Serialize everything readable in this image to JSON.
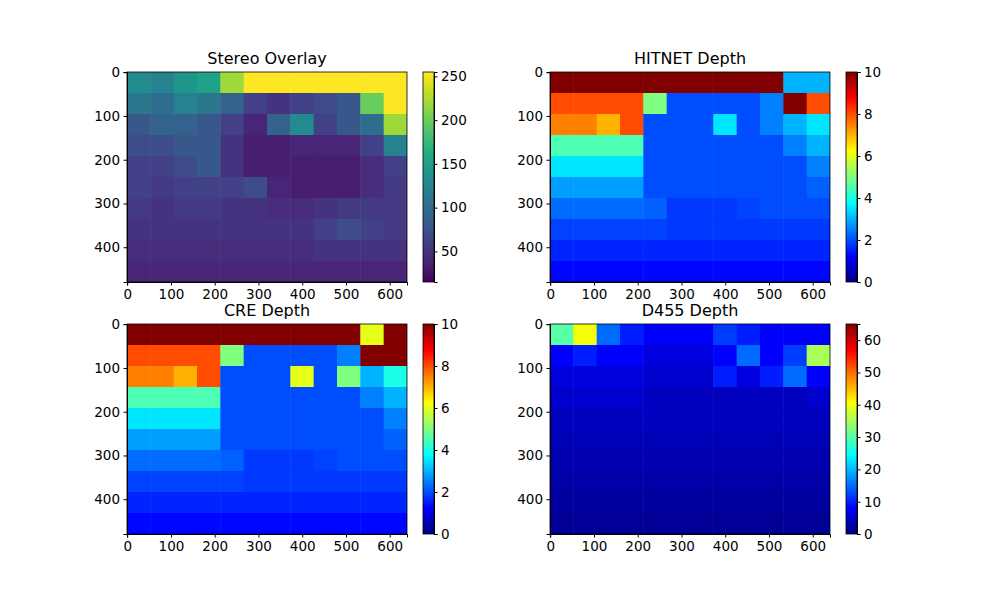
{
  "chart_data": [
    {
      "type": "heatmap",
      "title": "Stereo Overlay",
      "color": "viridis",
      "xlim": [
        -0.5,
        639.5
      ],
      "ylim": [
        479.5,
        -0.5
      ],
      "xticks": [
        0,
        100,
        200,
        300,
        400,
        500,
        600
      ],
      "yticks": [
        0,
        100,
        200,
        300,
        400
      ],
      "clim": [
        15,
        255
      ],
      "cticks": [
        50,
        100,
        150,
        200,
        250
      ],
      "values": [
        [
          130,
          120,
          140,
          150,
          220,
          255,
          255,
          255,
          255,
          255,
          255,
          255
        ],
        [
          110,
          100,
          120,
          110,
          90,
          60,
          50,
          60,
          70,
          80,
          200,
          255
        ],
        [
          80,
          90,
          90,
          80,
          60,
          40,
          90,
          130,
          60,
          80,
          100,
          220
        ],
        [
          70,
          70,
          80,
          80,
          50,
          35,
          35,
          40,
          40,
          40,
          60,
          120
        ],
        [
          60,
          60,
          70,
          80,
          50,
          35,
          35,
          35,
          35,
          35,
          45,
          60
        ],
        [
          60,
          55,
          60,
          60,
          60,
          70,
          40,
          35,
          35,
          35,
          45,
          55
        ],
        [
          55,
          50,
          55,
          55,
          50,
          50,
          45,
          45,
          50,
          55,
          55,
          55
        ],
        [
          50,
          50,
          50,
          50,
          50,
          50,
          50,
          50,
          60,
          70,
          60,
          55
        ],
        [
          45,
          45,
          45,
          45,
          45,
          45,
          45,
          45,
          50,
          50,
          50,
          50
        ],
        [
          40,
          40,
          40,
          40,
          40,
          40,
          40,
          40,
          40,
          40,
          40,
          40
        ]
      ]
    },
    {
      "type": "heatmap",
      "title": "HITNET Depth",
      "color": "jet",
      "xlim": [
        -0.5,
        639.5
      ],
      "ylim": [
        479.5,
        -0.5
      ],
      "xticks": [
        0,
        100,
        200,
        300,
        400,
        500,
        600
      ],
      "yticks": [
        0,
        100,
        200,
        300,
        400
      ],
      "clim": [
        0,
        10
      ],
      "cticks": [
        0,
        2,
        4,
        6,
        8,
        10
      ],
      "values": [
        [
          10,
          10,
          10,
          10,
          10,
          10,
          10,
          10,
          10,
          10,
          3,
          3
        ],
        [
          8,
          8,
          8,
          8,
          5,
          2,
          2,
          2,
          2,
          2.5,
          10,
          8
        ],
        [
          7.5,
          7.5,
          7,
          8,
          2,
          2,
          2,
          3.5,
          2,
          2.5,
          3,
          3.5
        ],
        [
          4.5,
          4.5,
          4.5,
          4.5,
          2,
          2,
          2,
          2,
          2,
          2,
          2.5,
          3
        ],
        [
          3.5,
          3.5,
          3.5,
          3.5,
          2,
          2,
          2,
          2,
          2,
          2,
          2,
          2.5
        ],
        [
          2.8,
          2.8,
          2.8,
          2.8,
          2,
          2,
          2,
          2,
          2,
          2,
          2,
          2.2
        ],
        [
          2.3,
          2.3,
          2.3,
          2.3,
          2.2,
          1.8,
          1.8,
          1.8,
          1.9,
          2,
          2,
          2
        ],
        [
          1.9,
          1.9,
          1.9,
          1.9,
          1.9,
          1.8,
          1.8,
          1.8,
          1.8,
          1.8,
          1.8,
          1.8
        ],
        [
          1.6,
          1.6,
          1.6,
          1.6,
          1.6,
          1.6,
          1.6,
          1.6,
          1.6,
          1.6,
          1.6,
          1.6
        ],
        [
          1.3,
          1.3,
          1.3,
          1.3,
          1.3,
          1.3,
          1.3,
          1.3,
          1.3,
          1.3,
          1.3,
          1.3
        ]
      ]
    },
    {
      "type": "heatmap",
      "title": "CRE Depth",
      "color": "jet",
      "xlim": [
        -0.5,
        639.5
      ],
      "ylim": [
        479.5,
        -0.5
      ],
      "xticks": [
        0,
        100,
        200,
        300,
        400,
        500,
        600
      ],
      "yticks": [
        0,
        100,
        200,
        300,
        400
      ],
      "clim": [
        0,
        10
      ],
      "cticks": [
        0,
        2,
        4,
        6,
        8,
        10
      ],
      "values": [
        [
          10,
          10,
          10,
          10,
          10,
          10,
          10,
          10,
          10,
          10,
          6,
          10
        ],
        [
          8,
          8,
          8,
          8,
          5,
          2,
          2,
          2,
          2,
          2.5,
          10,
          10
        ],
        [
          7.5,
          7.5,
          7,
          8,
          2,
          2,
          2,
          6,
          2,
          5,
          3,
          4
        ],
        [
          4.5,
          4.5,
          4.5,
          4.5,
          2,
          2,
          2,
          2,
          2,
          2,
          2.5,
          3
        ],
        [
          3.5,
          3.5,
          3.5,
          3.5,
          2,
          2,
          2,
          2,
          2,
          2,
          2,
          2.5
        ],
        [
          2.8,
          2.8,
          2.8,
          2.8,
          2,
          2,
          2,
          2,
          2,
          2,
          2,
          2.2
        ],
        [
          2.3,
          2.3,
          2.3,
          2.3,
          2.2,
          1.8,
          1.8,
          1.8,
          1.9,
          2,
          2,
          2
        ],
        [
          1.9,
          1.9,
          1.9,
          1.9,
          1.9,
          1.8,
          1.8,
          1.8,
          1.8,
          1.8,
          1.8,
          1.8
        ],
        [
          1.6,
          1.6,
          1.6,
          1.6,
          1.6,
          1.6,
          1.6,
          1.6,
          1.6,
          1.6,
          1.6,
          1.6
        ],
        [
          1.3,
          1.3,
          1.3,
          1.3,
          1.3,
          1.3,
          1.3,
          1.3,
          1.3,
          1.3,
          1.3,
          1.3
        ]
      ]
    },
    {
      "type": "heatmap",
      "title": "D455 Depth",
      "color": "jet",
      "xlim": [
        -0.5,
        639.5
      ],
      "ylim": [
        479.5,
        -0.5
      ],
      "xticks": [
        0,
        100,
        200,
        300,
        400,
        500,
        600
      ],
      "yticks": [
        0,
        100,
        200,
        300,
        400
      ],
      "clim": [
        0,
        65
      ],
      "cticks": [
        0,
        10,
        20,
        30,
        40,
        50,
        60
      ],
      "values": [
        [
          30,
          40,
          15,
          10,
          8,
          8,
          8,
          12,
          10,
          8,
          8,
          8
        ],
        [
          8,
          10,
          8,
          8,
          6,
          6,
          6,
          8,
          15,
          8,
          12,
          35
        ],
        [
          6,
          6,
          6,
          6,
          5,
          5,
          5,
          10,
          6,
          10,
          15,
          8
        ],
        [
          5,
          5,
          5,
          5,
          4,
          4,
          4,
          4,
          4,
          4,
          4,
          5
        ],
        [
          4,
          4,
          4,
          4,
          4,
          4,
          4,
          4,
          4,
          4,
          4,
          4
        ],
        [
          3.5,
          3.5,
          3.5,
          3.5,
          3.5,
          3.5,
          3.5,
          3.5,
          3.5,
          3.5,
          3.5,
          3.5
        ],
        [
          3,
          3,
          3,
          3,
          3,
          3,
          3,
          3,
          3,
          3,
          3,
          3
        ],
        [
          2.5,
          2.5,
          2.5,
          2.5,
          2.5,
          2.5,
          2.5,
          2.5,
          2.5,
          2.5,
          2.5,
          2.5
        ],
        [
          2,
          2,
          2,
          2,
          2,
          2,
          2,
          2,
          2,
          2,
          2,
          2
        ],
        [
          1.5,
          1.5,
          1.5,
          1.5,
          1.5,
          1.5,
          1.5,
          1.5,
          1.5,
          1.5,
          1.5,
          1.5
        ]
      ]
    }
  ]
}
